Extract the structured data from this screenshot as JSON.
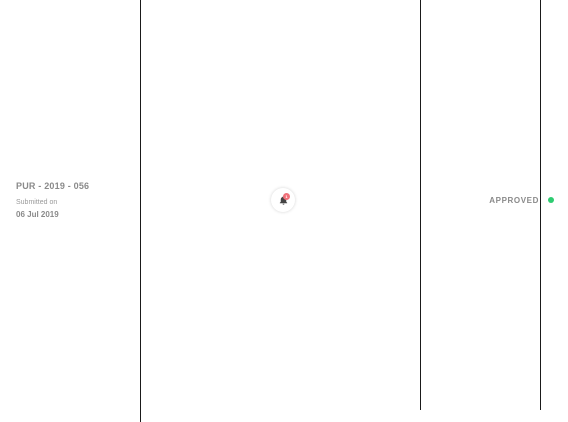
{
  "request": {
    "ref_number": "PUR - 2019 - 056",
    "submitted_label": "Submitted on",
    "submitted_date": "06 Jul 2019"
  },
  "notifications": {
    "icon": "bell-icon",
    "badge_count": "1",
    "badge_color": "#f0717a"
  },
  "status": {
    "label": "APPROVED",
    "dot_color": "#2ecc71"
  }
}
